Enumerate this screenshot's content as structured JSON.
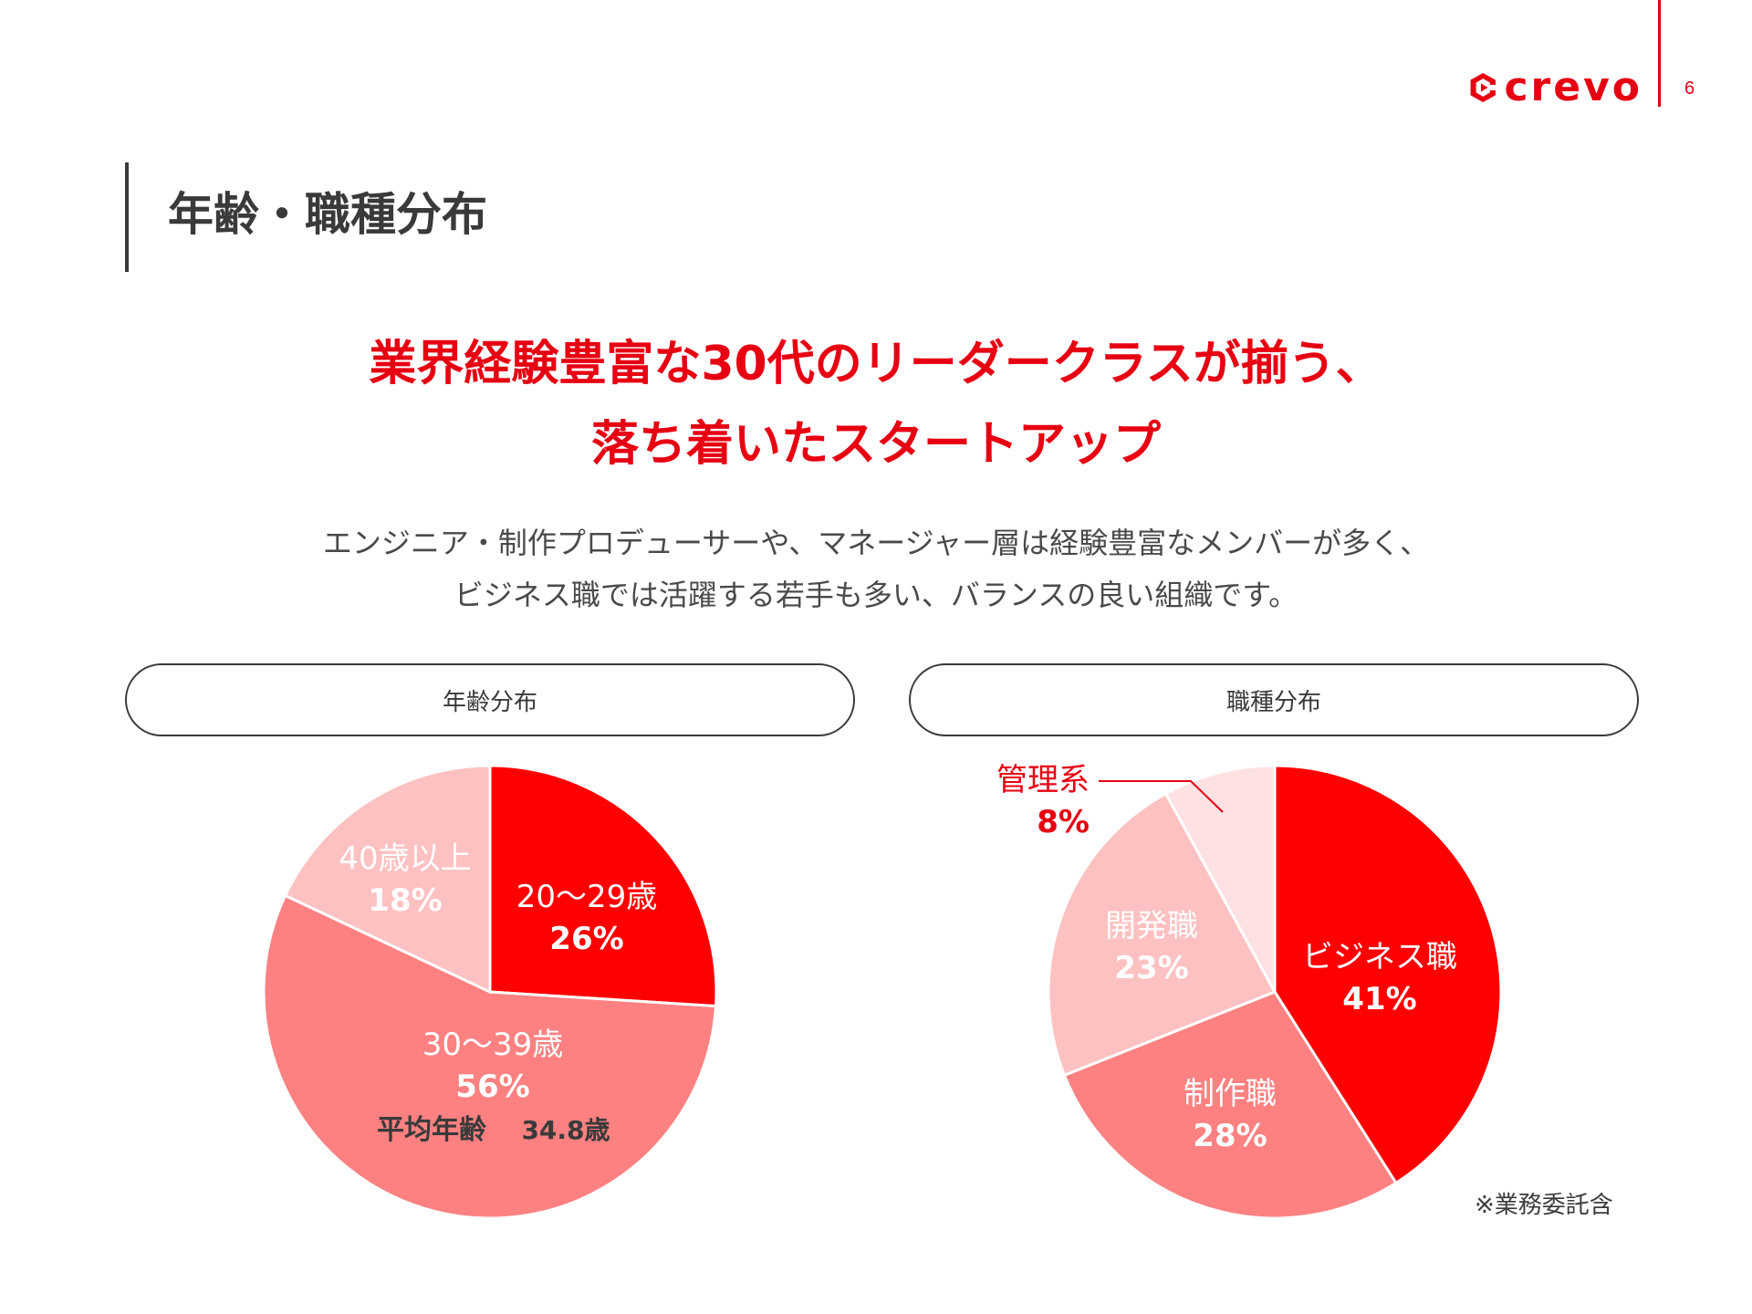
{
  "header": {
    "logo_text": "crevo",
    "page_number": "6",
    "page_title": "年齢・職種分布"
  },
  "headline": {
    "line1": "業界経験豊富な30代のリーダークラスが揃う、",
    "line2": "落ち着いたスタートアップ"
  },
  "description": {
    "line1": "エンジニア・制作プロデューサーや、マネージャー層は経験豊富なメンバーが多く、",
    "line2": "ビジネス職では活躍する若手も多い、バランスの良い組織です。"
  },
  "colors": {
    "accent": "#e60012",
    "red": "#ff0000",
    "salmon": "#fd8181",
    "light_pink": "#fec1c1",
    "pale_pink": "#fee1e3",
    "text": "#3a3a3a"
  },
  "chart_data": [
    {
      "type": "pie",
      "title": "年齢分布",
      "slices": [
        {
          "label": "20〜29歳",
          "value": 26,
          "value_label": "26%",
          "color": "#ff0000"
        },
        {
          "label": "30〜39歳",
          "value": 56,
          "value_label": "56%",
          "color": "#fd8181"
        },
        {
          "label": "40歳以上",
          "value": 18,
          "value_label": "18%",
          "color": "#fec1c1"
        }
      ],
      "annotation": {
        "label": "平均年齢",
        "value": "34.8歳"
      }
    },
    {
      "type": "pie",
      "title": "職種分布",
      "slices": [
        {
          "label": "ビジネス職",
          "value": 41,
          "value_label": "41%",
          "color": "#ff0000"
        },
        {
          "label": "制作職",
          "value": 28,
          "value_label": "28%",
          "color": "#fd8181"
        },
        {
          "label": "開発職",
          "value": 23,
          "value_label": "23%",
          "color": "#fec1c1"
        },
        {
          "label": "管理系",
          "value": 8,
          "value_label": "8%",
          "color": "#fee1e3"
        }
      ],
      "footnote": "※業務委託含"
    }
  ]
}
